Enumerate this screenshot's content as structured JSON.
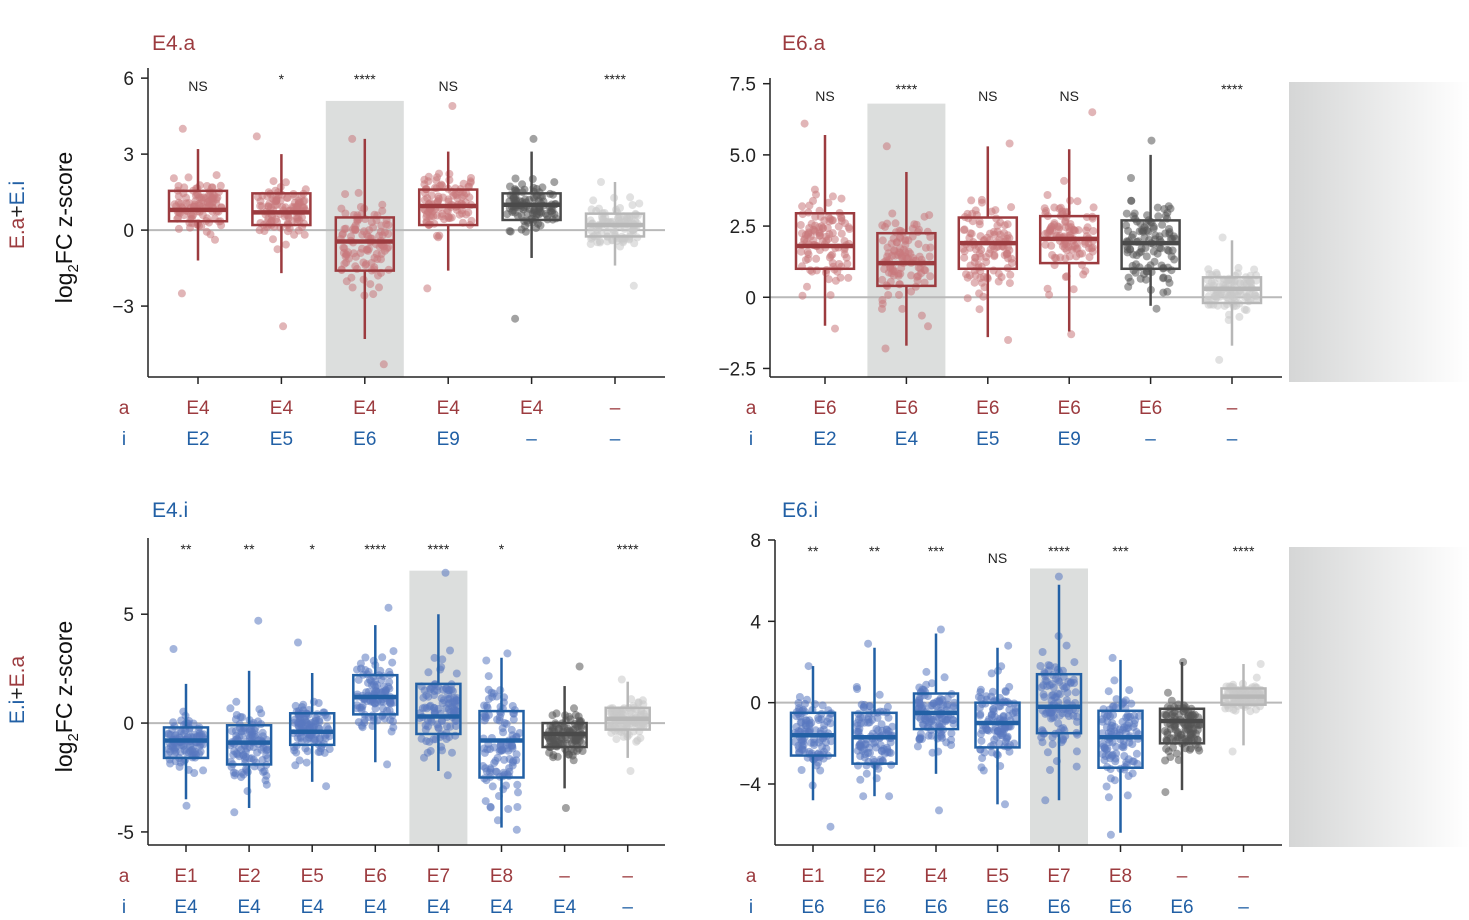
{
  "colors": {
    "red": "#9c3b3f",
    "blue": "#2260a5",
    "dark": "#4a4a4a",
    "light": "#b7b7b7",
    "red_pts": "#c8797b",
    "blue_pts": "#5a78c0",
    "dark_pts": "#555555",
    "light_pts": "#c8c8c8",
    "highlight": "#dcdedd",
    "axis": "#222222"
  },
  "row_labels": {
    "a": "a",
    "i": "i"
  },
  "ylabel": {
    "left": "log",
    "sub": "2",
    "right": "FC z-score"
  },
  "side_labels": {
    "top": {
      "first": "E.a",
      "plus": "+",
      "second": "E.i"
    },
    "bottom": {
      "first": "E.i",
      "plus": "+",
      "second": "E.a"
    }
  },
  "chart_data": [
    {
      "type": "box",
      "title": "E4.a",
      "title_color": "#9c3b3f",
      "ylim": [
        -5.8,
        6.4
      ],
      "yticks": [
        6,
        3,
        0,
        -3
      ],
      "ytick_labels": [
        "6",
        "3",
        "0",
        "−3"
      ],
      "ylabel": "log2FC z-score",
      "highlight_index": 2,
      "highlight_top": 5.1,
      "categories": [
        {
          "a": "E4",
          "i": "E2",
          "color": "red",
          "sig": "NS",
          "q1": 0.35,
          "median": 0.8,
          "q3": 1.55,
          "wlo": -1.2,
          "whi": 3.2,
          "ptmin": -2.5,
          "ptmax": 4.0
        },
        {
          "a": "E4",
          "i": "E5",
          "color": "red",
          "sig": "*",
          "q1": 0.2,
          "median": 0.7,
          "q3": 1.45,
          "wlo": -1.7,
          "whi": 3.0,
          "ptmin": -3.8,
          "ptmax": 3.7
        },
        {
          "a": "E4",
          "i": "E6",
          "color": "red",
          "sig": "****",
          "q1": -1.6,
          "median": -0.45,
          "q3": 0.5,
          "wlo": -4.3,
          "whi": 3.6,
          "ptmin": -5.3,
          "ptmax": 3.6
        },
        {
          "a": "E4",
          "i": "E9",
          "color": "red",
          "sig": "NS",
          "q1": 0.2,
          "median": 0.95,
          "q3": 1.6,
          "wlo": -1.6,
          "whi": 3.1,
          "ptmin": -2.3,
          "ptmax": 4.9
        },
        {
          "a": "E4",
          "i": "–",
          "color": "dark",
          "sig": "",
          "q1": 0.4,
          "median": 1.0,
          "q3": 1.45,
          "wlo": -1.1,
          "whi": 3.1,
          "ptmin": -3.5,
          "ptmax": 3.6
        },
        {
          "a": "–",
          "i": "–",
          "color": "light",
          "sig": "****",
          "q1": -0.25,
          "median": 0.2,
          "q3": 0.65,
          "wlo": -1.4,
          "whi": 1.9,
          "ptmin": -2.2,
          "ptmax": 1.9
        }
      ]
    },
    {
      "type": "box",
      "title": "E6.a",
      "title_color": "#9c3b3f",
      "ylim": [
        -2.8,
        7.7
      ],
      "yticks": [
        7.5,
        5.0,
        2.5,
        0,
        -2.5
      ],
      "ytick_labels": [
        "7.5",
        "5.0",
        "2.5",
        "0",
        "−2.5"
      ],
      "ylabel": "",
      "highlight_index": 1,
      "highlight_top": 6.8,
      "categories": [
        {
          "a": "E6",
          "i": "E2",
          "color": "red",
          "sig": "NS",
          "q1": 1.0,
          "median": 1.8,
          "q3": 2.95,
          "wlo": -1.0,
          "whi": 5.7,
          "ptmin": -1.1,
          "ptmax": 6.1
        },
        {
          "a": "E6",
          "i": "E4",
          "color": "red",
          "sig": "****",
          "q1": 0.4,
          "median": 1.2,
          "q3": 2.25,
          "wlo": -1.7,
          "whi": 4.4,
          "ptmin": -1.8,
          "ptmax": 5.3
        },
        {
          "a": "E6",
          "i": "E5",
          "color": "red",
          "sig": "NS",
          "q1": 1.0,
          "median": 1.9,
          "q3": 2.8,
          "wlo": -1.4,
          "whi": 5.3,
          "ptmin": -1.5,
          "ptmax": 5.4
        },
        {
          "a": "E6",
          "i": "E9",
          "color": "red",
          "sig": "NS",
          "q1": 1.2,
          "median": 2.05,
          "q3": 2.85,
          "wlo": -1.2,
          "whi": 5.2,
          "ptmin": -1.3,
          "ptmax": 6.5
        },
        {
          "a": "E6",
          "i": "–",
          "color": "dark",
          "sig": "",
          "q1": 1.0,
          "median": 1.9,
          "q3": 2.7,
          "wlo": -0.3,
          "whi": 5.0,
          "ptmin": -0.4,
          "ptmax": 5.5
        },
        {
          "a": "–",
          "i": "–",
          "color": "light",
          "sig": "****",
          "q1": -0.2,
          "median": 0.3,
          "q3": 0.7,
          "wlo": -1.7,
          "whi": 2.0,
          "ptmin": -2.2,
          "ptmax": 2.1
        }
      ]
    },
    {
      "type": "box",
      "title": "E4.i",
      "title_color": "#2260a5",
      "ylim": [
        -5.6,
        8.5
      ],
      "yticks": [
        5,
        0,
        -5
      ],
      "ytick_labels": [
        "5",
        "0",
        "-5"
      ],
      "ylabel": "log2FC z-score",
      "highlight_index": 4,
      "highlight_top": 7.0,
      "categories": [
        {
          "a": "E1",
          "i": "E4",
          "color": "blue",
          "sig": "**",
          "q1": -1.6,
          "median": -0.8,
          "q3": -0.2,
          "wlo": -3.5,
          "whi": 1.8,
          "ptmin": -3.8,
          "ptmax": 3.4
        },
        {
          "a": "E2",
          "i": "E4",
          "color": "blue",
          "sig": "**",
          "q1": -1.9,
          "median": -0.9,
          "q3": -0.1,
          "wlo": -3.9,
          "whi": 2.4,
          "ptmin": -4.1,
          "ptmax": 4.7
        },
        {
          "a": "E5",
          "i": "E4",
          "color": "blue",
          "sig": "*",
          "q1": -1.0,
          "median": -0.4,
          "q3": 0.45,
          "wlo": -2.7,
          "whi": 2.3,
          "ptmin": -2.9,
          "ptmax": 3.7
        },
        {
          "a": "E6",
          "i": "E4",
          "color": "blue",
          "sig": "****",
          "q1": 0.4,
          "median": 1.2,
          "q3": 2.2,
          "wlo": -1.8,
          "whi": 4.5,
          "ptmin": -1.9,
          "ptmax": 5.3
        },
        {
          "a": "E7",
          "i": "E4",
          "color": "blue",
          "sig": "****",
          "q1": -0.5,
          "median": 0.3,
          "q3": 1.8,
          "wlo": -2.2,
          "whi": 5.0,
          "ptmin": -2.4,
          "ptmax": 6.9
        },
        {
          "a": "E8",
          "i": "E4",
          "color": "blue",
          "sig": "*",
          "q1": -2.5,
          "median": -0.8,
          "q3": 0.55,
          "wlo": -4.8,
          "whi": 3.0,
          "ptmin": -4.9,
          "ptmax": 3.2
        },
        {
          "a": "–",
          "i": "E4",
          "color": "dark",
          "sig": "",
          "q1": -1.1,
          "median": -0.5,
          "q3": 0.0,
          "wlo": -3.0,
          "whi": 1.7,
          "ptmin": -3.9,
          "ptmax": 2.6
        },
        {
          "a": "–",
          "i": "–",
          "color": "light",
          "sig": "****",
          "q1": -0.3,
          "median": 0.2,
          "q3": 0.7,
          "wlo": -1.6,
          "whi": 1.9,
          "ptmin": -2.2,
          "ptmax": 2.0
        }
      ]
    },
    {
      "type": "box",
      "title": "E6.i",
      "title_color": "#2260a5",
      "ylim": [
        -7.0,
        8.0
      ],
      "yticks": [
        8,
        4,
        0,
        -4
      ],
      "ytick_labels": [
        "8",
        "4",
        "0",
        "−4"
      ],
      "ylabel": "",
      "highlight_index": 4,
      "highlight_top": 6.6,
      "categories": [
        {
          "a": "E1",
          "i": "E6",
          "color": "blue",
          "sig": "**",
          "q1": -2.6,
          "median": -1.6,
          "q3": -0.5,
          "wlo": -4.8,
          "whi": 1.8,
          "ptmin": -6.1,
          "ptmax": 1.8
        },
        {
          "a": "E2",
          "i": "E6",
          "color": "blue",
          "sig": "**",
          "q1": -3.0,
          "median": -1.7,
          "q3": -0.5,
          "wlo": -4.6,
          "whi": 2.7,
          "ptmin": -4.6,
          "ptmax": 2.9
        },
        {
          "a": "E4",
          "i": "E6",
          "color": "blue",
          "sig": "***",
          "q1": -1.3,
          "median": -0.5,
          "q3": 0.45,
          "wlo": -3.5,
          "whi": 3.4,
          "ptmin": -5.3,
          "ptmax": 3.6
        },
        {
          "a": "E5",
          "i": "E6",
          "color": "blue",
          "sig": "NS",
          "q1": -2.2,
          "median": -1.0,
          "q3": 0.0,
          "wlo": -5.0,
          "whi": 2.7,
          "ptmin": -5.0,
          "ptmax": 2.8
        },
        {
          "a": "E7",
          "i": "E6",
          "color": "blue",
          "sig": "****",
          "q1": -1.5,
          "median": -0.2,
          "q3": 1.4,
          "wlo": -4.8,
          "whi": 5.8,
          "ptmin": -4.8,
          "ptmax": 6.2
        },
        {
          "a": "E8",
          "i": "E6",
          "color": "blue",
          "sig": "***",
          "q1": -3.2,
          "median": -1.7,
          "q3": -0.4,
          "wlo": -6.4,
          "whi": 2.1,
          "ptmin": -6.5,
          "ptmax": 2.2
        },
        {
          "a": "–",
          "i": "E6",
          "color": "dark",
          "sig": "",
          "q1": -2.0,
          "median": -0.9,
          "q3": -0.3,
          "wlo": -4.3,
          "whi": 2.0,
          "ptmin": -4.4,
          "ptmax": 2.0
        },
        {
          "a": "–",
          "i": "–",
          "color": "light",
          "sig": "****",
          "q1": -0.1,
          "median": 0.3,
          "q3": 0.7,
          "wlo": -2.1,
          "whi": 1.9,
          "ptmin": -2.4,
          "ptmax": 1.9
        }
      ]
    }
  ]
}
